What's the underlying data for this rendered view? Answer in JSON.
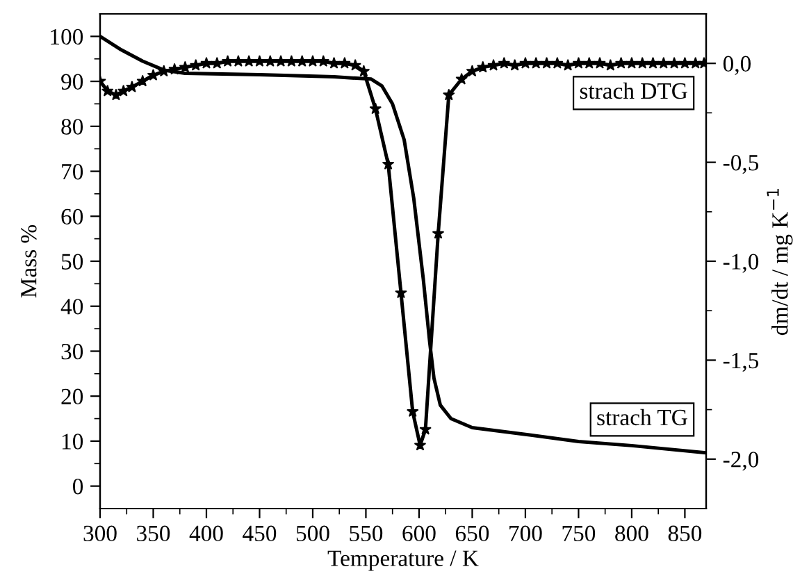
{
  "chart_data": {
    "type": "line",
    "xlabel": "Temperature / K",
    "ylabel": "Mass %",
    "y2label": "dm/dt / mg K$^{−1}$",
    "xlim": [
      300,
      870
    ],
    "xticks": [
      300,
      {
        "value": 325,
        "label": null
      },
      350,
      {
        "value": 375,
        "label": null
      },
      400,
      {
        "value": 425,
        "label": null
      },
      450,
      {
        "value": 475,
        "label": null
      },
      500,
      {
        "value": 525,
        "label": null
      },
      550,
      {
        "value": 575,
        "label": null
      },
      600,
      {
        "value": 625,
        "label": null
      },
      650,
      {
        "value": 675,
        "label": null
      },
      700,
      {
        "value": 725,
        "label": null
      },
      750,
      {
        "value": 775,
        "label": null
      },
      800,
      {
        "value": 825,
        "label": null
      },
      850
    ],
    "ylim": [
      -5,
      105
    ],
    "yticks": [
      0,
      {
        "value": 5,
        "label": null
      },
      10,
      {
        "value": 15,
        "label": null
      },
      20,
      {
        "value": 25,
        "label": null
      },
      30,
      {
        "value": 35,
        "label": null
      },
      40,
      {
        "value": 45,
        "label": null
      },
      50,
      {
        "value": 55,
        "label": null
      },
      60,
      {
        "value": 65,
        "label": null
      },
      70,
      {
        "value": 75,
        "label": null
      },
      80,
      {
        "value": 85,
        "label": null
      },
      90,
      {
        "value": 95,
        "label": null
      },
      100
    ],
    "y2lim": [
      -2.25,
      0.25
    ],
    "y2ticks": [
      {
        "value": -2.0,
        "label": "-2,0"
      },
      {
        "value": -1.75,
        "label": null
      },
      {
        "value": -1.5,
        "label": "-1,5"
      },
      {
        "value": -1.25,
        "label": null
      },
      {
        "value": -1.0,
        "label": "-1,0"
      },
      {
        "value": -0.75,
        "label": null
      },
      {
        "value": -0.5,
        "label": "-0,5"
      },
      {
        "value": -0.25,
        "label": null
      },
      {
        "value": 0.0,
        "label": "0,0"
      }
    ],
    "grid": false,
    "legend": false,
    "annotations": [
      "strach DTG",
      "strach TG"
    ],
    "series": [
      {
        "color": "#000000",
        "marker": "none",
        "x": [
          300,
          320,
          340,
          360,
          380,
          450,
          520,
          555,
          565,
          575,
          586,
          595,
          604,
          610,
          614,
          620,
          630,
          650,
          700,
          750,
          800,
          870
        ],
        "values": [
          100,
          97,
          94.5,
          92.5,
          91.8,
          91.5,
          91,
          90.5,
          89,
          85,
          77,
          64,
          46,
          32,
          24,
          18,
          15,
          13,
          11.5,
          9.9,
          9,
          7.4
        ]
      },
      {
        "color": "#000000",
        "marker": "star",
        "axis": "y2",
        "x": [
          300,
          307,
          315,
          322,
          330,
          340,
          350,
          360,
          370,
          380,
          390,
          400,
          410,
          420,
          430,
          440,
          450,
          460,
          470,
          480,
          490,
          500,
          510,
          520,
          530,
          540,
          548,
          559,
          571,
          583,
          594,
          601,
          606,
          618,
          628,
          640,
          650,
          660,
          670,
          680,
          690,
          700,
          710,
          720,
          730,
          740,
          750,
          760,
          770,
          780,
          790,
          800,
          810,
          820,
          830,
          840,
          850,
          860,
          868
        ],
        "values": [
          -0.09,
          -0.14,
          -0.16,
          -0.14,
          -0.12,
          -0.09,
          -0.06,
          -0.04,
          -0.03,
          -0.02,
          -0.01,
          0.0,
          0.0,
          0.01,
          0.01,
          0.01,
          0.01,
          0.01,
          0.01,
          0.01,
          0.01,
          0.01,
          0.01,
          0.0,
          0.0,
          -0.01,
          -0.04,
          -0.23,
          -0.51,
          -1.16,
          -1.76,
          -1.93,
          -1.85,
          -0.86,
          -0.16,
          -0.08,
          -0.04,
          -0.02,
          -0.01,
          0.0,
          -0.01,
          0.0,
          0.0,
          0.0,
          0.0,
          -0.01,
          0.0,
          0.0,
          0.0,
          -0.01,
          0.0,
          0.0,
          0.0,
          0.0,
          0.0,
          0.0,
          0.0,
          0.0,
          0.0
        ]
      }
    ]
  }
}
